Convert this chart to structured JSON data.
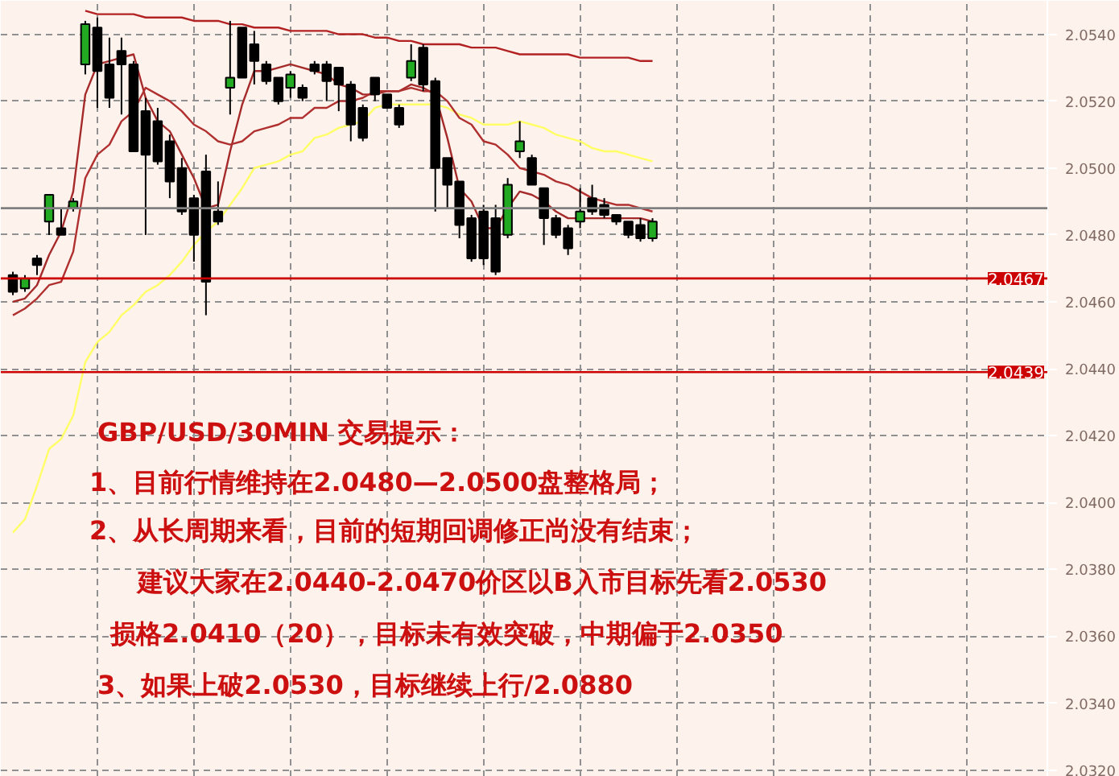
{
  "chart_data": {
    "type": "candlestick",
    "categories": [
      null,
      null,
      null,
      null,
      null,
      null,
      null,
      null,
      null,
      null,
      null,
      null,
      null,
      null,
      null,
      null,
      null,
      null,
      null,
      null,
      null,
      null,
      null,
      null,
      null,
      null,
      null,
      null,
      null,
      null,
      null,
      null,
      null,
      null,
      null,
      null,
      null,
      null,
      null,
      null,
      null,
      null,
      null,
      null,
      null,
      null,
      null,
      null,
      null,
      null,
      null,
      null,
      null,
      null
    ],
    "ohlc": [
      [
        2.0468,
        2.0469,
        2.0462,
        2.0463
      ],
      [
        2.0464,
        2.0468,
        2.0463,
        2.0467
      ],
      [
        2.0473,
        2.0474,
        2.0468,
        2.0471
      ],
      [
        2.0484,
        2.0492,
        2.048,
        2.0492
      ],
      [
        2.0482,
        2.0488,
        2.048,
        2.048
      ],
      [
        2.0488,
        2.0491,
        2.0487,
        2.049
      ],
      [
        2.0531,
        2.0544,
        2.0528,
        2.0543
      ],
      [
        2.0542,
        2.0545,
        2.0518,
        2.0529
      ],
      [
        2.0531,
        2.0539,
        2.0518,
        2.0521
      ],
      [
        2.0535,
        2.0539,
        2.0516,
        2.0531
      ],
      [
        2.0531,
        2.0532,
        2.0505,
        2.0505
      ],
      [
        2.0517,
        2.0521,
        2.048,
        2.0504
      ],
      [
        2.0514,
        2.0518,
        2.0501,
        2.0502
      ],
      [
        2.0508,
        2.051,
        2.0491,
        2.0496
      ],
      [
        2.05,
        2.0503,
        2.0486,
        2.0487
      ],
      [
        2.0491,
        2.0492,
        2.0472,
        2.048
      ],
      [
        2.0499,
        2.0504,
        2.0456,
        2.0466
      ],
      [
        2.0487,
        2.0496,
        2.0483,
        2.0484
      ],
      [
        2.0524,
        2.0544,
        2.0516,
        2.0527
      ],
      [
        2.0542,
        2.0542,
        2.0527,
        2.0527
      ],
      [
        2.0537,
        2.0541,
        2.0525,
        2.0532
      ],
      [
        2.0531,
        2.0532,
        2.0525,
        2.0526
      ],
      [
        2.0527,
        2.0527,
        2.0519,
        2.052
      ],
      [
        2.0524,
        2.0529,
        2.0521,
        2.0528
      ],
      [
        2.0524,
        2.0525,
        2.052,
        2.0521
      ],
      [
        2.0531,
        2.0532,
        2.0528,
        2.0529
      ],
      [
        2.0531,
        2.0532,
        2.052,
        2.0526
      ],
      [
        2.053,
        2.053,
        2.0517,
        2.0525
      ],
      [
        2.0525,
        2.0526,
        2.0508,
        2.0513
      ],
      [
        2.0518,
        2.0519,
        2.0508,
        2.0509
      ],
      [
        2.0527,
        2.0527,
        2.052,
        2.0522
      ],
      [
        2.0522,
        2.0522,
        2.0518,
        2.0518
      ],
      [
        2.0518,
        2.0519,
        2.0512,
        2.0513
      ],
      [
        2.0527,
        2.0537,
        2.0526,
        2.0532
      ],
      [
        2.0536,
        2.0537,
        2.0523,
        2.0525
      ],
      [
        2.0526,
        2.0527,
        2.0487,
        2.05
      ],
      [
        2.0503,
        2.0503,
        2.0488,
        2.0495
      ],
      [
        2.0496,
        2.0496,
        2.0479,
        2.0483
      ],
      [
        2.0485,
        2.0486,
        2.0472,
        2.0473
      ],
      [
        2.0487,
        2.0489,
        2.0471,
        2.0473
      ],
      [
        2.0485,
        2.0489,
        2.0468,
        2.0469
      ],
      [
        2.048,
        2.0497,
        2.0479,
        2.0495
      ],
      [
        2.0505,
        2.0514,
        2.0503,
        2.0508
      ],
      [
        2.0503,
        2.0504,
        2.0495,
        2.0495
      ],
      [
        2.0494,
        2.0494,
        2.0477,
        2.0485
      ],
      [
        2.0485,
        2.0486,
        2.0479,
        2.048
      ],
      [
        2.0482,
        2.0483,
        2.0474,
        2.0476
      ],
      [
        2.0484,
        2.0494,
        2.0482,
        2.0487
      ],
      [
        2.0491,
        2.0495,
        2.0486,
        2.0487
      ],
      [
        2.0489,
        2.0491,
        2.0485,
        2.0486
      ],
      [
        2.0486,
        2.0486,
        2.0483,
        2.0484
      ],
      [
        2.0484,
        2.0484,
        2.0479,
        2.048
      ],
      [
        2.0483,
        2.0485,
        2.0478,
        2.0479
      ],
      [
        2.0479,
        2.0485,
        2.0478,
        2.0484
      ]
    ],
    "series": [
      {
        "type": "line",
        "color": "#ffff66",
        "values": [
          2.0391,
          2.0395,
          2.0405,
          2.0416,
          2.0419,
          2.0426,
          2.0442,
          2.0448,
          2.0451,
          2.0456,
          2.0459,
          2.0463,
          2.0465,
          2.0468,
          2.0472,
          2.0477,
          2.0481,
          2.0484,
          2.0489,
          2.0494,
          2.05,
          2.0501,
          2.0502,
          2.0504,
          2.0505,
          2.0509,
          2.051,
          2.0512,
          2.0513,
          2.0514,
          2.0518,
          2.0519,
          2.0519,
          2.0519,
          2.0519,
          2.0519,
          2.0518,
          2.0516,
          2.0515,
          2.0513,
          2.0513,
          2.0513,
          2.0514,
          2.0513,
          2.0512,
          2.051,
          2.0509,
          2.0508,
          2.0506,
          2.0505,
          2.0505,
          2.0504,
          2.0503,
          2.0502
        ]
      },
      {
        "type": "line",
        "color": "#a52a2a",
        "values": [
          2.046,
          2.0461,
          2.0465,
          2.0474,
          2.0481,
          2.0493,
          2.0522,
          2.0531,
          2.0532,
          2.0533,
          2.0534,
          2.0521,
          2.0514,
          2.0511,
          2.0504,
          2.0497,
          2.0488,
          2.0489,
          2.0505,
          2.0519,
          2.0529,
          2.0529,
          2.053,
          2.0531,
          2.053,
          2.0529,
          2.0528,
          2.0525,
          2.0524,
          2.0522,
          2.0522,
          2.0523,
          2.0523,
          2.0525,
          2.0524,
          2.0522,
          2.0509,
          2.0494,
          2.049,
          2.0482,
          2.0482,
          2.0488,
          2.0493,
          2.0492,
          2.049,
          2.0487,
          2.0485,
          2.0485,
          2.0485,
          2.0485,
          2.0485,
          2.0485,
          2.0485,
          2.0484
        ]
      },
      {
        "type": "line",
        "color": "#b03030",
        "values": [
          2.0456,
          2.0458,
          2.0461,
          2.0465,
          2.0466,
          2.0475,
          2.0497,
          2.0504,
          2.0507,
          2.0514,
          2.0517,
          2.0524,
          2.0522,
          2.052,
          2.0517,
          2.0513,
          2.0511,
          2.0508,
          2.0507,
          2.0508,
          2.0511,
          2.0512,
          2.0513,
          2.0515,
          2.0515,
          2.0518,
          2.0518,
          2.052,
          2.052,
          2.0521,
          2.0523,
          2.0523,
          2.0523,
          2.0524,
          2.0523,
          2.0523,
          2.052,
          2.0515,
          2.0513,
          2.0508,
          2.0507,
          2.0504,
          2.05,
          2.0499,
          2.0498,
          2.0496,
          2.0495,
          2.0493,
          2.0491,
          2.049,
          2.0489,
          2.0489,
          2.0488,
          2.0487
        ]
      },
      {
        "type": "line",
        "color": "#b22222",
        "values": [
          null,
          null,
          null,
          null,
          null,
          null,
          2.0547,
          2.0546,
          2.0546,
          2.0546,
          2.0546,
          2.0545,
          2.0545,
          2.0545,
          2.0545,
          2.0544,
          2.0544,
          2.0544,
          2.0543,
          2.0543,
          2.0542,
          2.0542,
          2.0542,
          2.0541,
          2.0541,
          2.0541,
          2.0541,
          2.054,
          2.054,
          2.054,
          2.0539,
          2.0539,
          2.0538,
          2.0538,
          2.0537,
          2.0537,
          2.0537,
          2.0537,
          2.0536,
          2.0536,
          2.0536,
          2.0535,
          2.0534,
          2.0534,
          2.0534,
          2.0534,
          2.0534,
          2.0533,
          2.0533,
          2.0533,
          2.0533,
          2.0533,
          2.0532,
          2.0532
        ]
      }
    ],
    "ref_lines": [
      {
        "axis": "y",
        "value": 2.0467,
        "label": "2.0467",
        "color": "#cc0000"
      },
      {
        "axis": "y",
        "value": 2.0439,
        "label": "2.0439",
        "color": "#cc0000"
      },
      {
        "axis": "y",
        "value": 2.0488,
        "color": "#808080"
      }
    ],
    "ylim": [
      2.0318,
      2.055
    ],
    "yticks": [
      {
        "value": 2.054,
        "label": "2.0540"
      },
      {
        "value": 2.052,
        "label": "2.0520"
      },
      {
        "value": 2.05,
        "label": "2.0500"
      },
      {
        "value": 2.048,
        "label": "2.0480"
      },
      {
        "value": 2.046,
        "label": "2.0460"
      },
      {
        "value": 2.044,
        "label": "2.0440"
      },
      {
        "value": 2.042,
        "label": "2.0420"
      },
      {
        "value": 2.04,
        "label": "2.0400"
      },
      {
        "value": 2.038,
        "label": "2.0380"
      },
      {
        "value": 2.036,
        "label": "2.0360"
      },
      {
        "value": 2.034,
        "label": "2.0340"
      },
      {
        "value": 2.032,
        "label": "2.0320"
      }
    ],
    "grid": true,
    "annotations": [
      "GBP/USD/30MIN 交易提示：",
      "1、目前行情维持在2.0480—2.0500盘整格局；",
      "2、从长周期来看，目前的短期回调修正尚没有结束；",
      "建议大家在2.0440-2.0470价区以B入市目标先看2.0530",
      "损格2.0410（20），目标未有效突破，中期偏于2.0350",
      "3、如果上破2.0530，目标继续上行/2.0880"
    ]
  }
}
